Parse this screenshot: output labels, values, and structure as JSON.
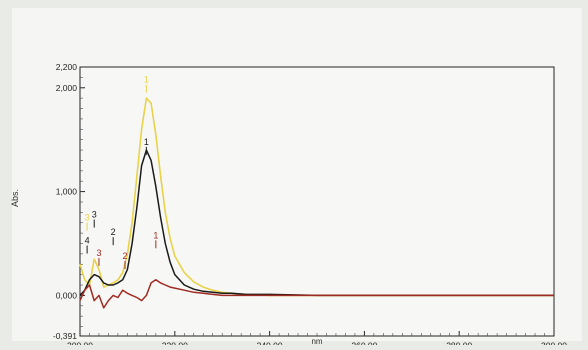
{
  "chart_data": {
    "type": "line",
    "title": "",
    "xlabel": "nm",
    "ylabel": "Abs.",
    "xlim": [
      200,
      300
    ],
    "ylim": [
      -0.391,
      2.2
    ],
    "x_ticks": [
      200,
      220,
      240,
      260,
      280,
      300
    ],
    "x_tick_labels": [
      "200,00",
      "220,00",
      "240,00",
      "260,00",
      "280,00",
      "300,00"
    ],
    "y_ticks": [
      -0.391,
      0,
      1,
      2,
      2.2
    ],
    "y_tick_labels": [
      "-0,391",
      "0,000",
      "1,000",
      "2,000",
      "2,200"
    ],
    "grid": false,
    "series": [
      {
        "color": "#e8d24a",
        "x": [
          200,
          201,
          202,
          203,
          204,
          205,
          206,
          207,
          208,
          209,
          210,
          211,
          212,
          213,
          214,
          215,
          216,
          217,
          218,
          219,
          220,
          222,
          224,
          226,
          228,
          230,
          232,
          235,
          240,
          250,
          260,
          270,
          280,
          290,
          300
        ],
        "y": [
          0.3,
          0.15,
          0.1,
          0.35,
          0.25,
          0.08,
          0.1,
          0.12,
          0.15,
          0.22,
          0.4,
          0.7,
          1.15,
          1.6,
          1.9,
          1.85,
          1.55,
          1.15,
          0.8,
          0.55,
          0.38,
          0.22,
          0.13,
          0.08,
          0.05,
          0.03,
          0.02,
          0.01,
          0.0,
          0.0,
          0.0,
          0.0,
          0.0,
          0.0,
          0.0
        ]
      },
      {
        "color": "#1a1a1a",
        "x": [
          200,
          201,
          202,
          203,
          204,
          205,
          206,
          207,
          208,
          209,
          210,
          211,
          212,
          213,
          214,
          215,
          216,
          217,
          218,
          219,
          220,
          222,
          224,
          226,
          228,
          230,
          232,
          235,
          240,
          250,
          260,
          270,
          280,
          290,
          300
        ],
        "y": [
          0.0,
          0.05,
          0.15,
          0.2,
          0.18,
          0.12,
          0.1,
          0.1,
          0.12,
          0.15,
          0.25,
          0.5,
          0.85,
          1.25,
          1.4,
          1.3,
          1.05,
          0.75,
          0.5,
          0.32,
          0.2,
          0.1,
          0.06,
          0.04,
          0.03,
          0.02,
          0.02,
          0.01,
          0.01,
          0.0,
          0.0,
          0.0,
          0.0,
          0.0,
          0.0
        ]
      },
      {
        "color": "#a12a22",
        "x": [
          200,
          201,
          202,
          203,
          204,
          205,
          206,
          207,
          208,
          209,
          210,
          211,
          212,
          213,
          214,
          215,
          216,
          217,
          218,
          219,
          220,
          222,
          224,
          226,
          228,
          230,
          232,
          235,
          240,
          250,
          260,
          270,
          280,
          290,
          300
        ],
        "y": [
          -0.05,
          0.05,
          0.1,
          -0.05,
          0.0,
          -0.12,
          -0.05,
          0.0,
          -0.02,
          0.05,
          0.02,
          0.0,
          -0.02,
          -0.05,
          0.0,
          0.12,
          0.15,
          0.12,
          0.1,
          0.08,
          0.07,
          0.05,
          0.03,
          0.02,
          0.01,
          0.0,
          0.0,
          0.0,
          0.0,
          0.0,
          0.0,
          0.0,
          0.0,
          0.0,
          0.0
        ]
      }
    ],
    "annotations": [
      {
        "text": "1",
        "x": 214,
        "y": 1.45,
        "color": "#1a1a1a"
      },
      {
        "text": "3",
        "x": 203,
        "y": 0.75,
        "color": "#1a1a1a"
      },
      {
        "text": "4",
        "x": 201.5,
        "y": 0.5,
        "color": "#1a1a1a"
      },
      {
        "text": "2",
        "x": 207,
        "y": 0.58,
        "color": "#1a1a1a"
      },
      {
        "text": "1",
        "x": 216,
        "y": 0.55,
        "color": "#a12a22"
      },
      {
        "text": "3",
        "x": 204,
        "y": 0.38,
        "color": "#a12a22"
      },
      {
        "text": "2",
        "x": 209.5,
        "y": 0.35,
        "color": "#a12a22"
      },
      {
        "text": "1",
        "x": 214,
        "y": 2.05,
        "color": "#e8d24a"
      },
      {
        "text": "3",
        "x": 201.5,
        "y": 0.72,
        "color": "#e8d24a"
      }
    ]
  }
}
